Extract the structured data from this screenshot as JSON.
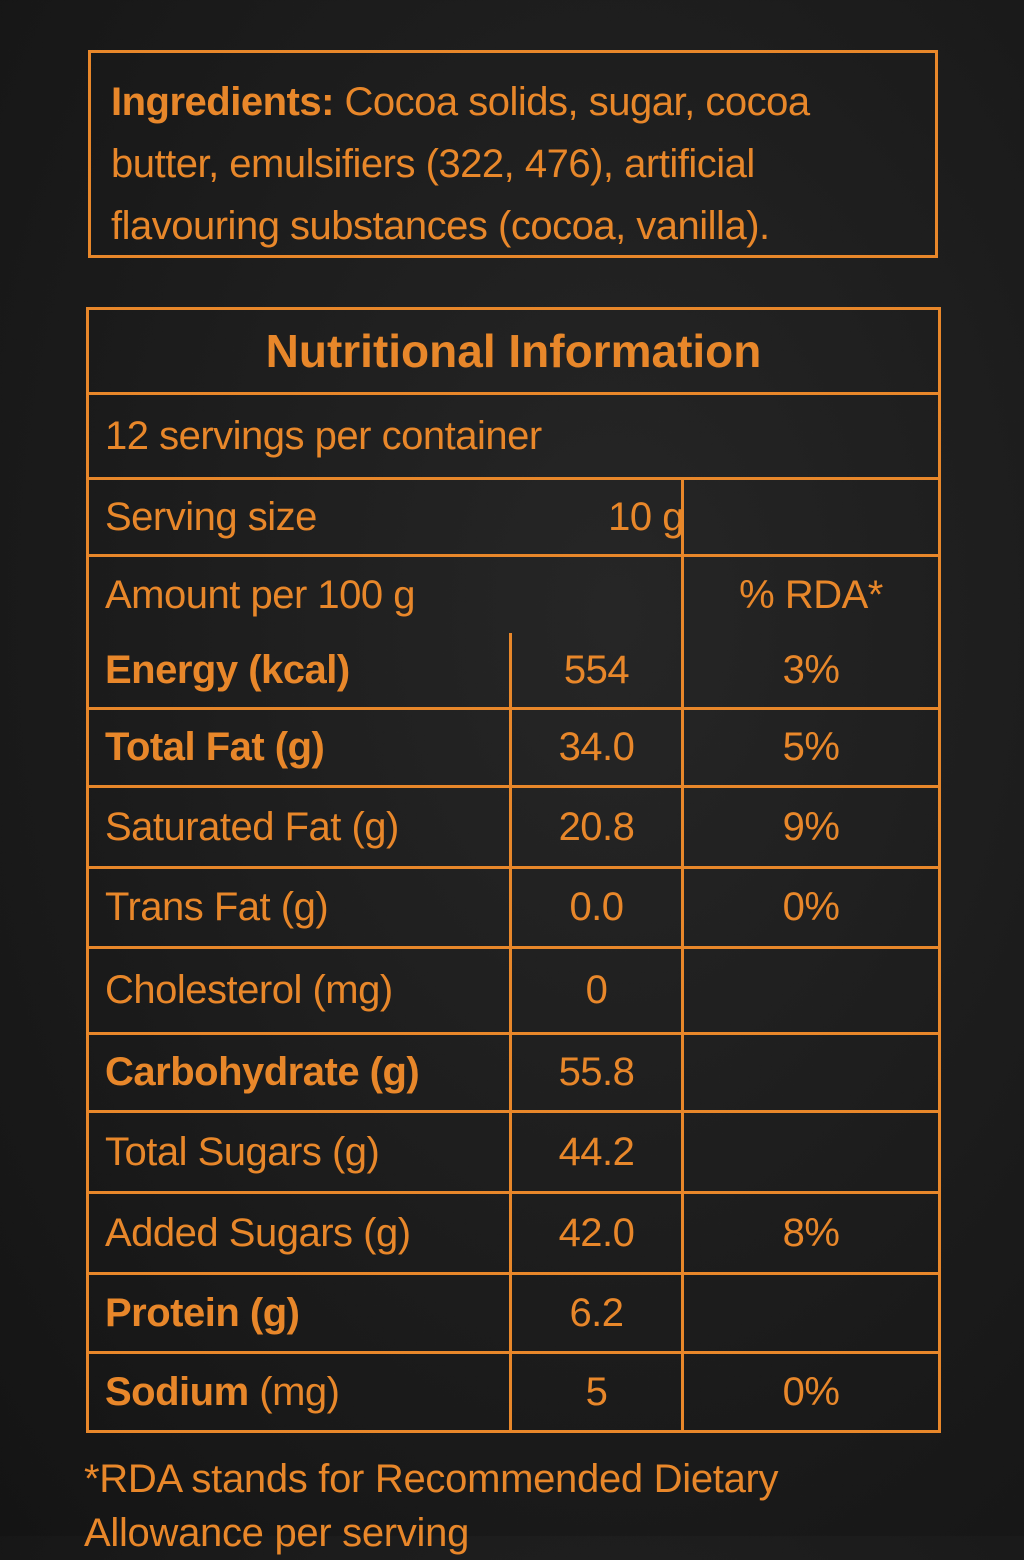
{
  "ingredients": {
    "label": "Ingredients:",
    "line1": "Cocoa solids, sugar, cocoa",
    "line2": "butter, emulsifiers (322, 476), artificial",
    "line3": "flavouring substances (cocoa, vanilla)."
  },
  "nutrition": {
    "title": "Nutritional Information",
    "servings": "12 servings per container",
    "serving_size_label": "Serving size",
    "serving_size_value": "10 g",
    "amount_label": "Amount per 100 g",
    "rda_header": "% RDA*",
    "rows": [
      {
        "name": "Energy (kcal)",
        "unit": "",
        "value": "554",
        "rda": "3%",
        "bold": true
      },
      {
        "name": "Total Fat (g)",
        "unit": "",
        "value": "34.0",
        "rda": "5%",
        "bold": true
      },
      {
        "name": "Saturated Fat (g)",
        "unit": "",
        "value": "20.8",
        "rda": "9%",
        "bold": false
      },
      {
        "name": "Trans Fat (g)",
        "unit": "",
        "value": "0.0",
        "rda": "0%",
        "bold": false
      },
      {
        "name": "Cholesterol (mg)",
        "unit": "",
        "value": "0",
        "rda": "",
        "bold": false
      },
      {
        "name": "Carbohydrate (g)",
        "unit": "",
        "value": "55.8",
        "rda": "",
        "bold": true
      },
      {
        "name": "Total Sugars (g)",
        "unit": "",
        "value": "44.2",
        "rda": "",
        "bold": false
      },
      {
        "name": "Added Sugars (g)",
        "unit": "",
        "value": "42.0",
        "rda": "8%",
        "bold": false
      },
      {
        "name": "Protein (g)",
        "unit": "",
        "value": "6.2",
        "rda": "",
        "bold": true
      },
      {
        "name": "Sodium",
        "unit": " (mg)",
        "value": "5",
        "rda": "0%",
        "bold": true
      }
    ]
  },
  "footnote": {
    "line1": "*RDA stands for Recommended Dietary",
    "line2": "Allowance per serving"
  },
  "colors": {
    "accent": "#e8872a",
    "background": "#1b1b1b"
  }
}
